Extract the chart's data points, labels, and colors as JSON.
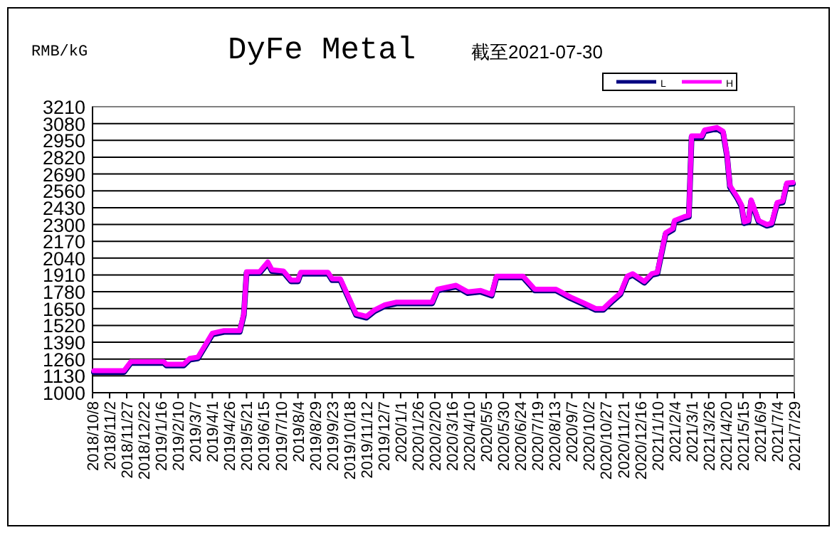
{
  "chart_data": {
    "type": "line",
    "title": "DyFe Metal",
    "subtitle": "截至2021-07-30",
    "ylabel": "RMB/kG",
    "x": [
      "2018-10-10",
      "2018-11-23",
      "2018-12-03",
      "2019-01-20",
      "2019-01-24",
      "2019-02-18",
      "2019-02-27",
      "2019-03-11",
      "2019-04-01",
      "2019-04-18",
      "2019-05-11",
      "2019-05-17",
      "2019-05-21",
      "2019-06-09",
      "2019-06-21",
      "2019-06-27",
      "2019-07-14",
      "2019-07-25",
      "2019-08-04",
      "2019-08-08",
      "2019-09-17",
      "2019-09-23",
      "2019-10-05",
      "2019-10-22",
      "2019-10-28",
      "2019-11-12",
      "2019-11-24",
      "2019-12-09",
      "2019-12-26",
      "2020-02-16",
      "2020-02-24",
      "2020-03-22",
      "2020-04-08",
      "2020-04-27",
      "2020-05-13",
      "2020-05-20",
      "2020-06-28",
      "2020-07-15",
      "2020-08-15",
      "2020-09-05",
      "2020-09-26",
      "2020-10-12",
      "2020-10-23",
      "2020-11-06",
      "2020-11-17",
      "2020-11-27",
      "2020-12-05",
      "2020-12-22",
      "2021-01-02",
      "2021-01-10",
      "2021-01-22",
      "2021-02-02",
      "2021-02-04",
      "2021-02-18",
      "2021-02-25",
      "2021-03-01",
      "2021-03-16",
      "2021-03-20",
      "2021-04-07",
      "2021-04-16",
      "2021-04-22",
      "2021-04-26",
      "2021-05-07",
      "2021-05-13",
      "2021-05-17",
      "2021-05-23",
      "2021-05-27",
      "2021-06-07",
      "2021-06-19",
      "2021-06-26",
      "2021-07-04",
      "2021-07-12",
      "2021-07-18",
      "2021-07-27"
    ],
    "series": [
      {
        "name": "L",
        "color": "#000080",
        "values": [
          1160,
          1160,
          1230,
          1230,
          1210,
          1210,
          1255,
          1265,
          1450,
          1470,
          1470,
          1600,
          1925,
          1925,
          2000,
          1940,
          1930,
          1860,
          1860,
          1920,
          1920,
          1870,
          1870,
          1670,
          1600,
          1580,
          1630,
          1670,
          1690,
          1690,
          1790,
          1820,
          1770,
          1780,
          1750,
          1890,
          1890,
          1790,
          1790,
          1730,
          1680,
          1640,
          1640,
          1710,
          1760,
          1890,
          1910,
          1850,
          1910,
          1920,
          2225,
          2260,
          2320,
          2350,
          2360,
          2975,
          2975,
          3020,
          3040,
          3010,
          2820,
          2590,
          2500,
          2440,
          2310,
          2320,
          2480,
          2320,
          2290,
          2300,
          2460,
          2470,
          2610,
          2615
        ]
      },
      {
        "name": "H",
        "color": "#ff00ff",
        "values": [
          1170,
          1170,
          1240,
          1240,
          1220,
          1220,
          1265,
          1275,
          1460,
          1480,
          1480,
          1610,
          1935,
          1935,
          2010,
          1950,
          1940,
          1870,
          1870,
          1930,
          1930,
          1880,
          1880,
          1680,
          1610,
          1590,
          1640,
          1680,
          1700,
          1700,
          1800,
          1830,
          1780,
          1790,
          1760,
          1900,
          1900,
          1800,
          1800,
          1740,
          1690,
          1650,
          1650,
          1720,
          1770,
          1900,
          1920,
          1860,
          1920,
          1930,
          2235,
          2270,
          2330,
          2360,
          2370,
          2985,
          2985,
          3030,
          3050,
          3020,
          2830,
          2600,
          2510,
          2450,
          2320,
          2330,
          2490,
          2330,
          2300,
          2310,
          2470,
          2480,
          2620,
          2625
        ]
      }
    ],
    "xlim": [
      "2018-10-08",
      "2021-07-29"
    ],
    "xticks": [
      {
        "value": "2018-10-08",
        "label": "2018/10/8"
      },
      {
        "value": "2018-11-02",
        "label": "2018/11/2"
      },
      {
        "value": "2018-11-27",
        "label": "2018/11/27"
      },
      {
        "value": "2018-12-22",
        "label": "2018/12/22"
      },
      {
        "value": "2019-01-16",
        "label": "2019/1/16"
      },
      {
        "value": "2019-02-10",
        "label": "2019/2/10"
      },
      {
        "value": "2019-03-07",
        "label": "2019/3/7"
      },
      {
        "value": "2019-04-01",
        "label": "2019/4/1"
      },
      {
        "value": "2019-04-26",
        "label": "2019/4/26"
      },
      {
        "value": "2019-05-21",
        "label": "2019/5/21"
      },
      {
        "value": "2019-06-15",
        "label": "2019/6/15"
      },
      {
        "value": "2019-07-10",
        "label": "2019/7/10"
      },
      {
        "value": "2019-08-04",
        "label": "2019/8/4"
      },
      {
        "value": "2019-08-29",
        "label": "2019/8/29"
      },
      {
        "value": "2019-09-23",
        "label": "2019/9/23"
      },
      {
        "value": "2019-10-18",
        "label": "2019/10/18"
      },
      {
        "value": "2019-11-12",
        "label": "2019/11/12"
      },
      {
        "value": "2019-12-07",
        "label": "2019/12/7"
      },
      {
        "value": "2020-01-01",
        "label": "2020/1/1"
      },
      {
        "value": "2020-01-26",
        "label": "2020/1/26"
      },
      {
        "value": "2020-02-20",
        "label": "2020/2/20"
      },
      {
        "value": "2020-03-16",
        "label": "2020/3/16"
      },
      {
        "value": "2020-04-10",
        "label": "2020/4/10"
      },
      {
        "value": "2020-05-05",
        "label": "2020/5/5"
      },
      {
        "value": "2020-05-30",
        "label": "2020/5/30"
      },
      {
        "value": "2020-06-24",
        "label": "2020/6/24"
      },
      {
        "value": "2020-07-19",
        "label": "2020/7/19"
      },
      {
        "value": "2020-08-13",
        "label": "2020/8/13"
      },
      {
        "value": "2020-09-07",
        "label": "2020/9/7"
      },
      {
        "value": "2020-10-02",
        "label": "2020/10/2"
      },
      {
        "value": "2020-10-27",
        "label": "2020/10/27"
      },
      {
        "value": "2020-11-21",
        "label": "2020/11/21"
      },
      {
        "value": "2020-12-16",
        "label": "2020/12/16"
      },
      {
        "value": "2021-01-10",
        "label": "2021/1/10"
      },
      {
        "value": "2021-02-04",
        "label": "2021/2/4"
      },
      {
        "value": "2021-03-01",
        "label": "2021/3/1"
      },
      {
        "value": "2021-03-26",
        "label": "2021/3/26"
      },
      {
        "value": "2021-04-20",
        "label": "2021/4/20"
      },
      {
        "value": "2021-05-15",
        "label": "2021/5/15"
      },
      {
        "value": "2021-06-09",
        "label": "2021/6/9"
      },
      {
        "value": "2021-07-04",
        "label": "2021/7/4"
      },
      {
        "value": "2021-07-29",
        "label": "2021/7/29"
      }
    ],
    "ylim": [
      1000,
      3210
    ],
    "yticks": [
      1000,
      1130,
      1260,
      1390,
      1520,
      1650,
      1780,
      1910,
      2040,
      2170,
      2300,
      2430,
      2560,
      2690,
      2820,
      2950,
      3080,
      3210
    ],
    "grid": "y",
    "legend": "top right"
  }
}
